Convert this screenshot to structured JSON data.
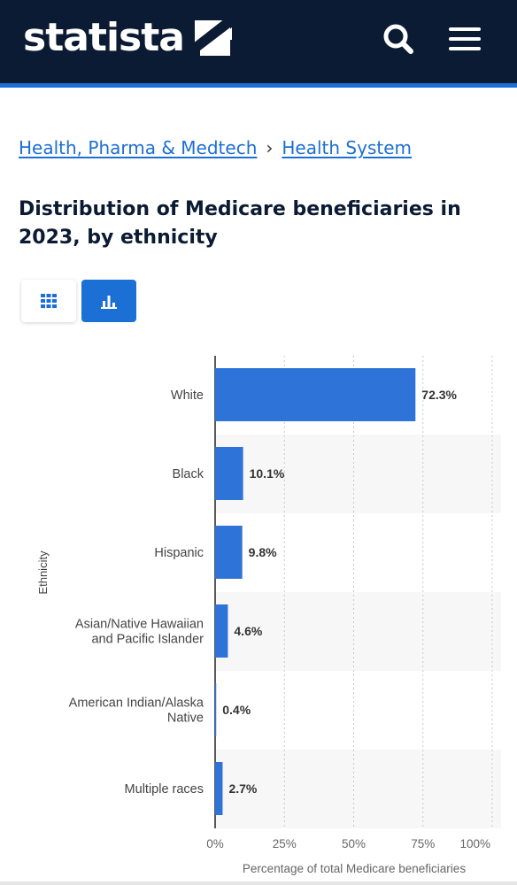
{
  "header": {
    "logo_text": "statista",
    "background_color": "#0b1b33",
    "accent_color": "#1c6fd4",
    "icons": [
      "statista-logo-mark-icon",
      "search-icon",
      "hamburger-menu-icon"
    ]
  },
  "breadcrumb": {
    "items": [
      {
        "label": "Health, Pharma & Medtech"
      },
      {
        "label": "Health System"
      }
    ],
    "separator": "›"
  },
  "title": "Distribution of Medicare beneficiaries in 2023, by ethnicity",
  "view_toggle": {
    "options": [
      {
        "icon": "table-grid-icon",
        "active": false
      },
      {
        "icon": "bar-chart-icon",
        "active": true
      }
    ]
  },
  "chart_data": {
    "type": "bar",
    "orientation": "horizontal",
    "categories": [
      "White",
      "Black",
      "Hispanic",
      "Asian/Native Hawaiian and Pacific Islander",
      "American Indian/Alaska Native",
      "Multiple races"
    ],
    "category_lines": [
      [
        "White"
      ],
      [
        "Black"
      ],
      [
        "Hispanic"
      ],
      [
        "Asian/Native Hawaiian",
        "and Pacific Islander"
      ],
      [
        "American Indian/Alaska",
        "Native"
      ],
      [
        "Multiple races"
      ]
    ],
    "values": [
      72.3,
      10.1,
      9.8,
      4.6,
      0.4,
      2.7
    ],
    "value_labels": [
      "72.3%",
      "10.1%",
      "9.8%",
      "4.6%",
      "0.4%",
      "2.7%"
    ],
    "xlabel": "Percentage of total Medicare beneficiaries",
    "ylabel": "Ethnicity",
    "xlim": [
      0,
      100
    ],
    "x_ticks": [
      0,
      25,
      50,
      75,
      100
    ],
    "x_tick_labels": [
      "0%",
      "25%",
      "50%",
      "75%",
      "100%"
    ],
    "grid": true,
    "bar_color": "#2e73d8",
    "alternate_row_shading": "#f7f7f7"
  }
}
